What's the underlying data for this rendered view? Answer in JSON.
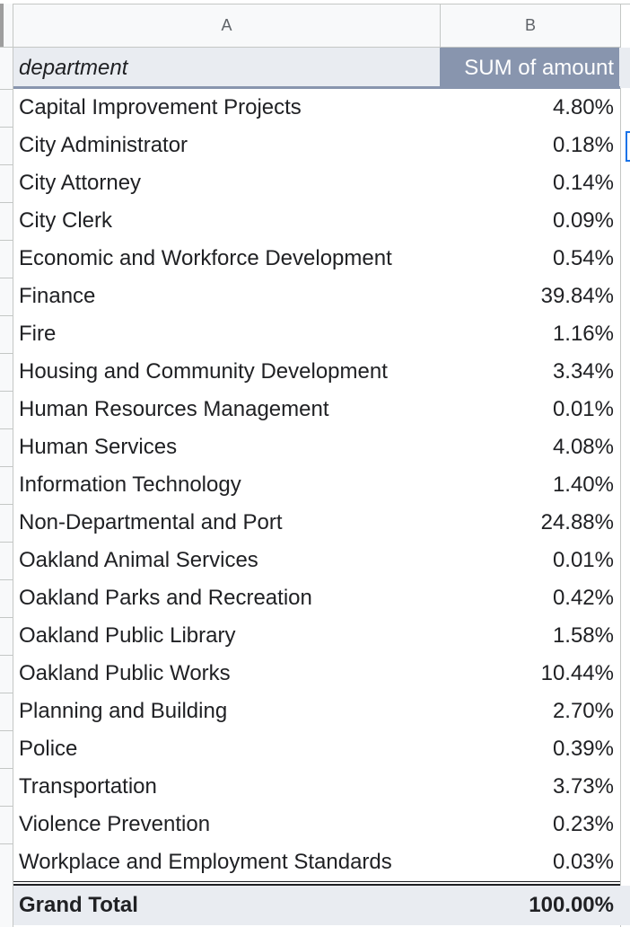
{
  "columns": {
    "a": "A",
    "b": "B"
  },
  "header": {
    "department": "department",
    "amount": "SUM of amount"
  },
  "rows": [
    {
      "department": "Capital Improvement Projects",
      "amount": "4.80%"
    },
    {
      "department": "City Administrator",
      "amount": "0.18%"
    },
    {
      "department": "City Attorney",
      "amount": "0.14%"
    },
    {
      "department": "City Clerk",
      "amount": "0.09%"
    },
    {
      "department": "Economic and Workforce Development",
      "amount": "0.54%"
    },
    {
      "department": "Finance",
      "amount": "39.84%"
    },
    {
      "department": "Fire",
      "amount": "1.16%"
    },
    {
      "department": "Housing and Community Development",
      "amount": "3.34%"
    },
    {
      "department": "Human Resources Management",
      "amount": "0.01%"
    },
    {
      "department": "Human Services",
      "amount": "4.08%"
    },
    {
      "department": "Information Technology",
      "amount": "1.40%"
    },
    {
      "department": "Non-Departmental and Port",
      "amount": "24.88%"
    },
    {
      "department": "Oakland Animal Services",
      "amount": "0.01%"
    },
    {
      "department": "Oakland Parks and Recreation",
      "amount": "0.42%"
    },
    {
      "department": "Oakland Public Library",
      "amount": "1.58%"
    },
    {
      "department": "Oakland Public Works",
      "amount": "10.44%"
    },
    {
      "department": "Planning and Building",
      "amount": "2.70%"
    },
    {
      "department": "Police",
      "amount": "0.39%"
    },
    {
      "department": "Transportation",
      "amount": "3.73%"
    },
    {
      "department": "Violence Prevention",
      "amount": "0.23%"
    },
    {
      "department": "Workplace and Employment Standards",
      "amount": "0.03%"
    }
  ],
  "total": {
    "label": "Grand Total",
    "amount": "100.00%"
  },
  "colors": {
    "header_accent": "#8895ae",
    "header_bg": "#e9ecf1",
    "selection": "#1a73e8"
  }
}
